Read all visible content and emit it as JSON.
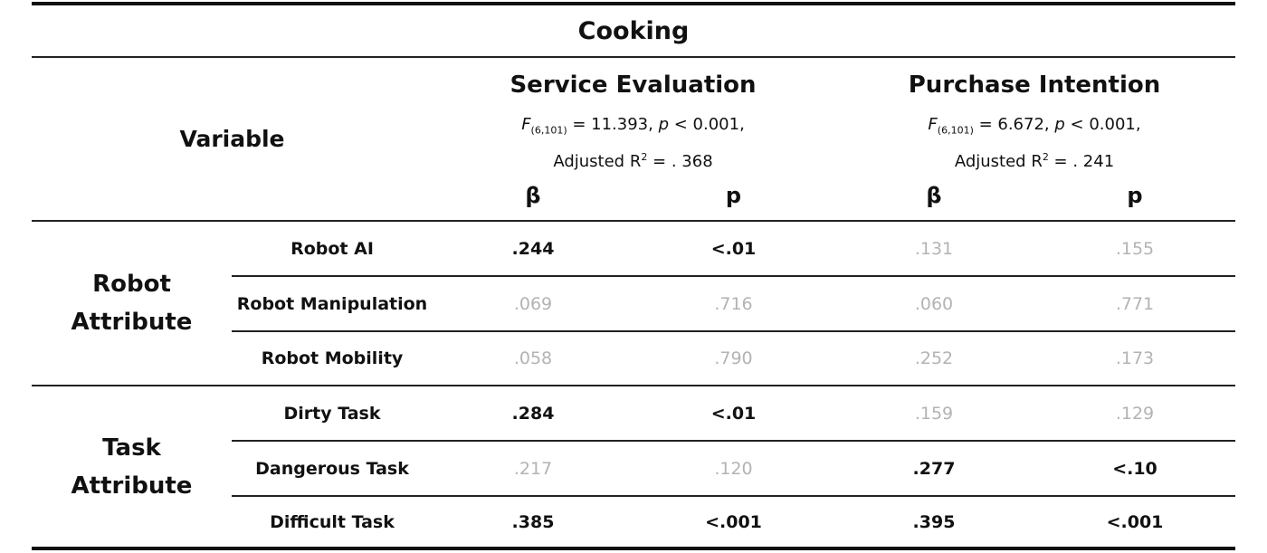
{
  "title": "Cooking",
  "variable_header": "Variable",
  "groups": [
    {
      "name": "Service Evaluation",
      "stat_f": "F",
      "stat_df": "(6,101)",
      "stat_f_value": " = 11.393, ",
      "stat_p": "p",
      "stat_p_value": " < 0.001,",
      "stat_r2_label": "Adjusted R",
      "stat_r2_sup": "2",
      "stat_r2_value": " = . 368",
      "col_beta": "β",
      "col_p": "p"
    },
    {
      "name": "Purchase Intention",
      "stat_f": "F",
      "stat_df": "(6,101)",
      "stat_f_value": " = 6.672, ",
      "stat_p": "p",
      "stat_p_value": " < 0.001,",
      "stat_r2_label": "Adjusted R",
      "stat_r2_sup": "2",
      "stat_r2_value": " = . 241",
      "col_beta": "β",
      "col_p": "p"
    }
  ],
  "sections": [
    {
      "label_line1": "Robot",
      "label_line2": "Attribute",
      "rows": [
        {
          "label": "Robot AI",
          "values": [
            ".244",
            "<.01",
            ".131",
            ".155"
          ],
          "significant": [
            true,
            true,
            false,
            false
          ]
        },
        {
          "label": "Robot Manipulation",
          "values": [
            ".069",
            ".716",
            ".060",
            ".771"
          ],
          "significant": [
            false,
            false,
            false,
            false
          ]
        },
        {
          "label": "Robot Mobility",
          "values": [
            ".058",
            ".790",
            ".252",
            ".173"
          ],
          "significant": [
            false,
            false,
            false,
            false
          ]
        }
      ]
    },
    {
      "label_line1": "Task",
      "label_line2": "Attribute",
      "rows": [
        {
          "label": "Dirty Task",
          "values": [
            ".284",
            "<.01",
            ".159",
            ".129"
          ],
          "significant": [
            true,
            true,
            false,
            false
          ]
        },
        {
          "label": "Dangerous Task",
          "values": [
            ".217",
            ".120",
            ".277",
            "<.10"
          ],
          "significant": [
            false,
            false,
            true,
            true
          ]
        },
        {
          "label": "Difficult Task",
          "values": [
            ".385",
            "<.001",
            ".395",
            "<.001"
          ],
          "significant": [
            true,
            true,
            true,
            true
          ]
        }
      ]
    }
  ],
  "colors": {
    "significant": "#111111",
    "non_significant": "#b3b3b3",
    "rule": "#111111"
  }
}
